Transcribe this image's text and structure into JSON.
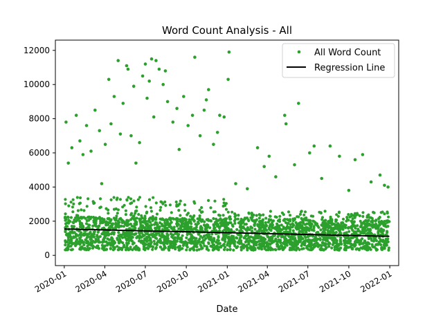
{
  "chart_data": {
    "type": "scatter",
    "title": "Word Count Analysis - All",
    "xlabel": "Date",
    "ylabel": "",
    "x_type": "date",
    "xlim": [
      "2019-12-12",
      "2022-01-21"
    ],
    "ylim": [
      -600,
      12600
    ],
    "x_ticks": [
      "2020-01",
      "2020-04",
      "2020-07",
      "2020-10",
      "2021-01",
      "2021-04",
      "2021-07",
      "2021-10",
      "2022-01"
    ],
    "y_ticks": [
      0,
      2000,
      4000,
      6000,
      8000,
      10000,
      12000
    ],
    "grid": false,
    "legend_position": "top-right",
    "series": [
      {
        "name": "All Word Count",
        "kind": "scatter",
        "color": "#2ca02c",
        "points": [
          [
            "2020-01-05",
            7800
          ],
          [
            "2020-01-10",
            5400
          ],
          [
            "2020-01-18",
            6300
          ],
          [
            "2020-01-28",
            8200
          ],
          [
            "2020-02-05",
            6700
          ],
          [
            "2020-02-12",
            5900
          ],
          [
            "2020-02-20",
            7600
          ],
          [
            "2020-03-01",
            6100
          ],
          [
            "2020-03-10",
            8500
          ],
          [
            "2020-03-20",
            7300
          ],
          [
            "2020-03-25",
            4200
          ],
          [
            "2020-04-02",
            6500
          ],
          [
            "2020-04-10",
            10300
          ],
          [
            "2020-04-15",
            7700
          ],
          [
            "2020-04-22",
            9300
          ],
          [
            "2020-05-01",
            11400
          ],
          [
            "2020-05-06",
            7100
          ],
          [
            "2020-05-12",
            8900
          ],
          [
            "2020-05-20",
            11100
          ],
          [
            "2020-05-23",
            10900
          ],
          [
            "2020-05-30",
            7000
          ],
          [
            "2020-06-05",
            9900
          ],
          [
            "2020-06-10",
            5400
          ],
          [
            "2020-06-18",
            6600
          ],
          [
            "2020-06-25",
            10500
          ],
          [
            "2020-07-01",
            11200
          ],
          [
            "2020-07-05",
            9200
          ],
          [
            "2020-07-10",
            10200
          ],
          [
            "2020-07-15",
            11500
          ],
          [
            "2020-07-20",
            8100
          ],
          [
            "2020-07-25",
            11400
          ],
          [
            "2020-08-01",
            10900
          ],
          [
            "2020-08-10",
            10000
          ],
          [
            "2020-08-15",
            10800
          ],
          [
            "2020-08-20",
            9000
          ],
          [
            "2020-09-01",
            7800
          ],
          [
            "2020-09-10",
            8600
          ],
          [
            "2020-09-15",
            6200
          ],
          [
            "2020-09-25",
            9300
          ],
          [
            "2020-10-05",
            7600
          ],
          [
            "2020-10-15",
            8200
          ],
          [
            "2020-10-20",
            11600
          ],
          [
            "2020-11-01",
            7000
          ],
          [
            "2020-11-10",
            8500
          ],
          [
            "2020-11-15",
            9100
          ],
          [
            "2020-11-20",
            9700
          ],
          [
            "2020-12-01",
            6500
          ],
          [
            "2020-12-10",
            7200
          ],
          [
            "2020-12-15",
            8200
          ],
          [
            "2020-12-25",
            8100
          ],
          [
            "2021-01-03",
            10300
          ],
          [
            "2021-01-05",
            11900
          ],
          [
            "2021-01-20",
            4200
          ],
          [
            "2021-02-15",
            3900
          ],
          [
            "2021-03-10",
            6300
          ],
          [
            "2021-03-25",
            5200
          ],
          [
            "2021-04-05",
            5800
          ],
          [
            "2021-04-20",
            4600
          ],
          [
            "2021-05-10",
            8200
          ],
          [
            "2021-05-13",
            7700
          ],
          [
            "2021-06-01",
            5300
          ],
          [
            "2021-06-10",
            8900
          ],
          [
            "2021-07-05",
            6000
          ],
          [
            "2021-07-15",
            6400
          ],
          [
            "2021-08-01",
            4500
          ],
          [
            "2021-08-20",
            6400
          ],
          [
            "2021-09-10",
            5800
          ],
          [
            "2021-10-01",
            3800
          ],
          [
            "2021-10-15",
            5600
          ],
          [
            "2021-11-01",
            5900
          ],
          [
            "2021-11-20",
            4300
          ],
          [
            "2021-12-10",
            4700
          ],
          [
            "2021-12-20",
            4100
          ],
          [
            "2021-12-28",
            4000
          ]
        ]
      },
      {
        "name": "Regression Line",
        "kind": "line",
        "color": "#000000",
        "points": [
          [
            "2020-01-01",
            1540
          ],
          [
            "2021-12-31",
            1110
          ]
        ]
      }
    ]
  }
}
